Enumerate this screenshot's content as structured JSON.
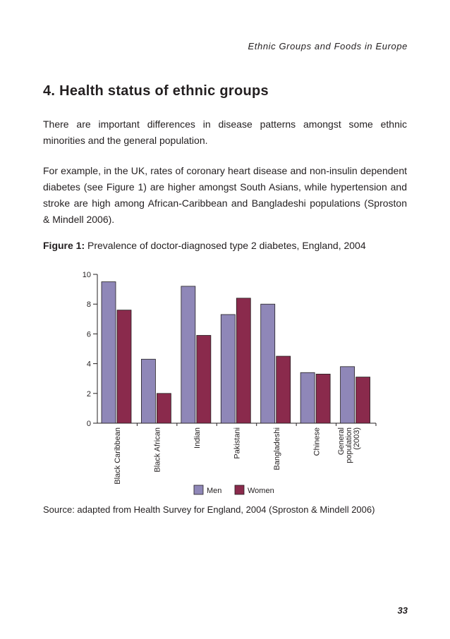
{
  "header": {
    "running_title": "Ethnic Groups and Foods in Europe"
  },
  "section": {
    "title": "4. Health status of ethnic groups",
    "paragraphs": [
      "There are important differences in disease patterns amongst some ethnic minorities and the general population.",
      "For example, in the UK, rates of coronary heart disease and non-insulin dependent diabetes (see Figure 1) are higher amongst South Asians, while hypertension and stroke are high among African-Caribbean and Bangladeshi populations (Sproston & Mindell 2006)."
    ]
  },
  "figure": {
    "label": "Figure 1:",
    "caption": "Prevalence of doctor-diagnosed type 2 diabetes, England, 2004",
    "source": "Source: adapted from Health Survey for England, 2004 (Sproston & Mindell 2006)"
  },
  "chart_data": {
    "type": "bar",
    "title": "Prevalence of doctor-diagnosed type 2 diabetes, England, 2004",
    "xlabel": "",
    "ylabel": "",
    "ylim": [
      0,
      10
    ],
    "yticks": [
      0,
      2,
      4,
      6,
      8,
      10
    ],
    "grid": false,
    "legend_position": "bottom",
    "categories": [
      [
        "Black Caribbean"
      ],
      [
        "Black African"
      ],
      [
        "Indian"
      ],
      [
        "Pakistani"
      ],
      [
        "Bangladeshi"
      ],
      [
        "Chinese"
      ],
      [
        "General",
        "population",
        "(2003)"
      ]
    ],
    "series": [
      {
        "name": "Men",
        "color": "#8f87b8",
        "values": [
          9.5,
          4.3,
          9.2,
          7.3,
          8.0,
          3.4,
          3.8
        ]
      },
      {
        "name": "Women",
        "color": "#8a2a4c",
        "values": [
          7.6,
          2.0,
          5.9,
          8.4,
          4.5,
          3.3,
          3.1
        ]
      }
    ]
  },
  "footer": {
    "page_number": "33"
  }
}
